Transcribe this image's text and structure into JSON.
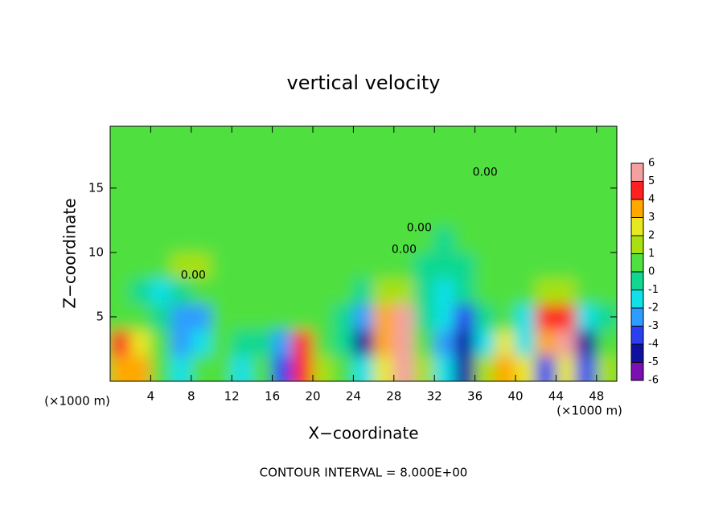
{
  "chart_data": {
    "type": "heatmap",
    "title": "vertical velocity",
    "xlabel": "X−coordinate",
    "ylabel": "Z−coordinate",
    "x_unit_left": "(×1000 m)",
    "x_unit_right": "(×1000 m)",
    "footer": "CONTOUR INTERVAL = 8.000E+00",
    "xlim": [
      0,
      50
    ],
    "ylim": [
      0,
      19.8
    ],
    "xticks": [
      4,
      8,
      12,
      16,
      20,
      24,
      28,
      32,
      36,
      40,
      44,
      48
    ],
    "yticks": [
      5,
      10,
      15
    ],
    "xbins": [
      0,
      2,
      4,
      6,
      8,
      10,
      12,
      14,
      16,
      18,
      20,
      22,
      24,
      26,
      28,
      30,
      32,
      34,
      36,
      38,
      40,
      42,
      44,
      46,
      48,
      50
    ],
    "ybins": [
      0,
      2,
      4,
      6,
      8,
      10,
      12,
      14,
      16,
      18,
      19.8
    ],
    "values": [
      [
        3,
        3,
        0,
        -2,
        0,
        0,
        -2,
        0,
        -4,
        4,
        1,
        0,
        -2,
        2,
        6,
        1,
        -2,
        -5,
        1,
        3,
        2,
        -4,
        2,
        -4,
        1
      ],
      [
        4,
        2,
        0,
        -3,
        -2,
        0,
        -1,
        -1,
        -3,
        4,
        0,
        -1,
        -5,
        3,
        6,
        0,
        -3,
        -5,
        -2,
        2,
        -2,
        3,
        6,
        -5,
        0
      ],
      [
        0,
        0,
        -1,
        -3,
        -3,
        0,
        0,
        0,
        0,
        0,
        0,
        -1,
        -3,
        3,
        5,
        -1,
        -2,
        -4,
        -1,
        0,
        -2,
        4,
        4,
        -2,
        -1
      ],
      [
        0,
        -1,
        -2,
        -1,
        0,
        0,
        0,
        0,
        0,
        0,
        0,
        0,
        -1,
        1,
        1,
        -1,
        -2,
        -1,
        0,
        0,
        0,
        1,
        1,
        0,
        0
      ],
      [
        0,
        0,
        0,
        1,
        1,
        0,
        0,
        0,
        0,
        0,
        0,
        0,
        0,
        0,
        0,
        -1,
        -1,
        -1,
        0,
        0,
        0,
        0,
        0,
        0,
        0
      ],
      [
        0,
        0,
        0,
        0,
        0,
        0,
        0,
        0,
        0,
        0,
        0,
        0,
        0,
        0,
        0,
        0,
        -1,
        0,
        0,
        0,
        0,
        0,
        0,
        0,
        0
      ],
      [
        0,
        0,
        0,
        0,
        0,
        0,
        0,
        0,
        0,
        0,
        0,
        0,
        0,
        0,
        0,
        0,
        0,
        0,
        0,
        0,
        0,
        0,
        0,
        0,
        0
      ],
      [
        0,
        0,
        0,
        0,
        0,
        0,
        0,
        0,
        0,
        0,
        0,
        0,
        0,
        0,
        0,
        0,
        0,
        0,
        0,
        0,
        0,
        0,
        0,
        0,
        0
      ],
      [
        0,
        0,
        0,
        0,
        0,
        0,
        0,
        0,
        0,
        0,
        0,
        0,
        0,
        0,
        0,
        0,
        0,
        0,
        0,
        0,
        0,
        0,
        0,
        0,
        0
      ],
      [
        0,
        0,
        0,
        0,
        0,
        0,
        0,
        0,
        0,
        0,
        0,
        0,
        0,
        0,
        0,
        0,
        0,
        0,
        0,
        0,
        0,
        0,
        0,
        0,
        0
      ]
    ],
    "colorbar": {
      "ticks": [
        -6,
        -5,
        -4,
        -3,
        -2,
        -1,
        0,
        1,
        2,
        3,
        4,
        5,
        6
      ],
      "colors": [
        "#7a10b0",
        "#1010a0",
        "#2a40f0",
        "#2e9cff",
        "#10e0e8",
        "#10d890",
        "#50e040",
        "#a8e010",
        "#e8e820",
        "#ffa800",
        "#ff2020",
        "#f4a0a0"
      ]
    },
    "annotations": [
      {
        "text": "0.00",
        "x": 37,
        "z": 16.2
      },
      {
        "text": "0.00",
        "x": 29,
        "z": 10.2
      },
      {
        "text": "0.00",
        "x": 30.5,
        "z": 11.9
      },
      {
        "text": "0.00",
        "x": 8.2,
        "z": 8.2
      }
    ]
  }
}
